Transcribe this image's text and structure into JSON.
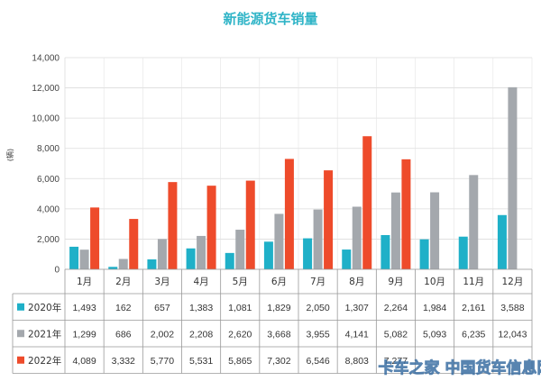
{
  "chart_data": {
    "type": "bar",
    "title": "新能源货车销量",
    "ylabel": "(辆)",
    "ylim": [
      0,
      14000
    ],
    "yticks": [
      0,
      2000,
      4000,
      6000,
      8000,
      10000,
      12000,
      14000
    ],
    "ytick_labels": [
      "0",
      "2,000",
      "4,000",
      "6,000",
      "8,000",
      "10,000",
      "12,000",
      "14,000"
    ],
    "categories": [
      "1月",
      "2月",
      "3月",
      "4月",
      "5月",
      "6月",
      "7月",
      "8月",
      "9月",
      "10月",
      "11月",
      "12月"
    ],
    "grid": true,
    "legend": "table-bottom",
    "series": [
      {
        "name": "2020年",
        "color": "#1fb0c8",
        "values": [
          1493,
          162,
          657,
          1383,
          1081,
          1829,
          2050,
          1307,
          2264,
          1984,
          2161,
          3588
        ],
        "labels": [
          "1,493",
          "162",
          "657",
          "1,383",
          "1,081",
          "1,829",
          "2,050",
          "1,307",
          "2,264",
          "1,984",
          "2,161",
          "3,588"
        ]
      },
      {
        "name": "2021年",
        "color": "#a4a8ad",
        "values": [
          1299,
          686,
          2002,
          2208,
          2620,
          3668,
          3955,
          4141,
          5082,
          5093,
          6235,
          12043
        ],
        "labels": [
          "1,299",
          "686",
          "2,002",
          "2,208",
          "2,620",
          "3,668",
          "3,955",
          "4,141",
          "5,082",
          "5,093",
          "6,235",
          "12,043"
        ]
      },
      {
        "name": "2022年",
        "color": "#ee4b2b",
        "values": [
          4089,
          3332,
          5770,
          5531,
          5865,
          7302,
          6546,
          8803,
          7277,
          null,
          null,
          null
        ],
        "labels": [
          "4,089",
          "3,332",
          "5,770",
          "5,531",
          "5,865",
          "7,302",
          "6,546",
          "8,803",
          "7,277",
          "",
          "",
          ""
        ]
      }
    ]
  },
  "watermark": "卡车之家 中国货车信息网"
}
